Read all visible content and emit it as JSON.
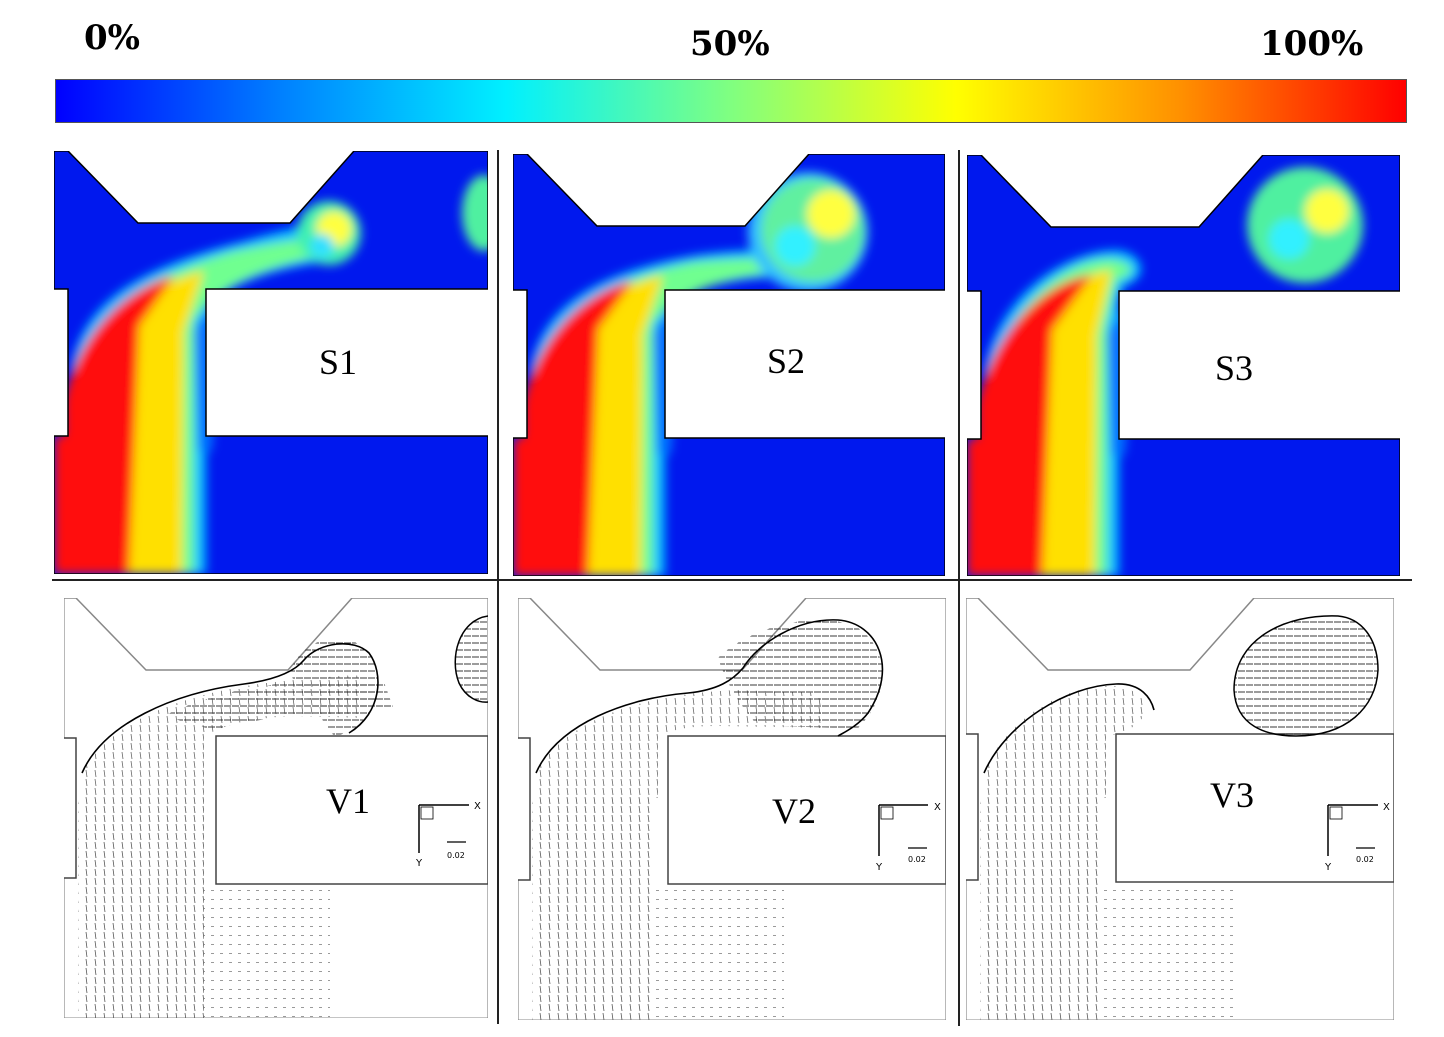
{
  "colorbar": {
    "min_label": "0%",
    "mid_label": "50%",
    "max_label": "100%",
    "stops": [
      "#0000ff",
      "#0080ff",
      "#00f0ff",
      "#80ff80",
      "#ffff00",
      "#ff9000",
      "#ff0000"
    ]
  },
  "panels": {
    "s1": "S1",
    "s2": "S2",
    "s3": "S3",
    "v1": "V1",
    "v2": "V2",
    "v3": "V3"
  },
  "axes_glyph": {
    "x": "X",
    "y": "Y",
    "scale": "0.02"
  },
  "colors": {
    "low": "#0000ff",
    "field_blue": "#0020e8",
    "high": "#ff1010"
  }
}
